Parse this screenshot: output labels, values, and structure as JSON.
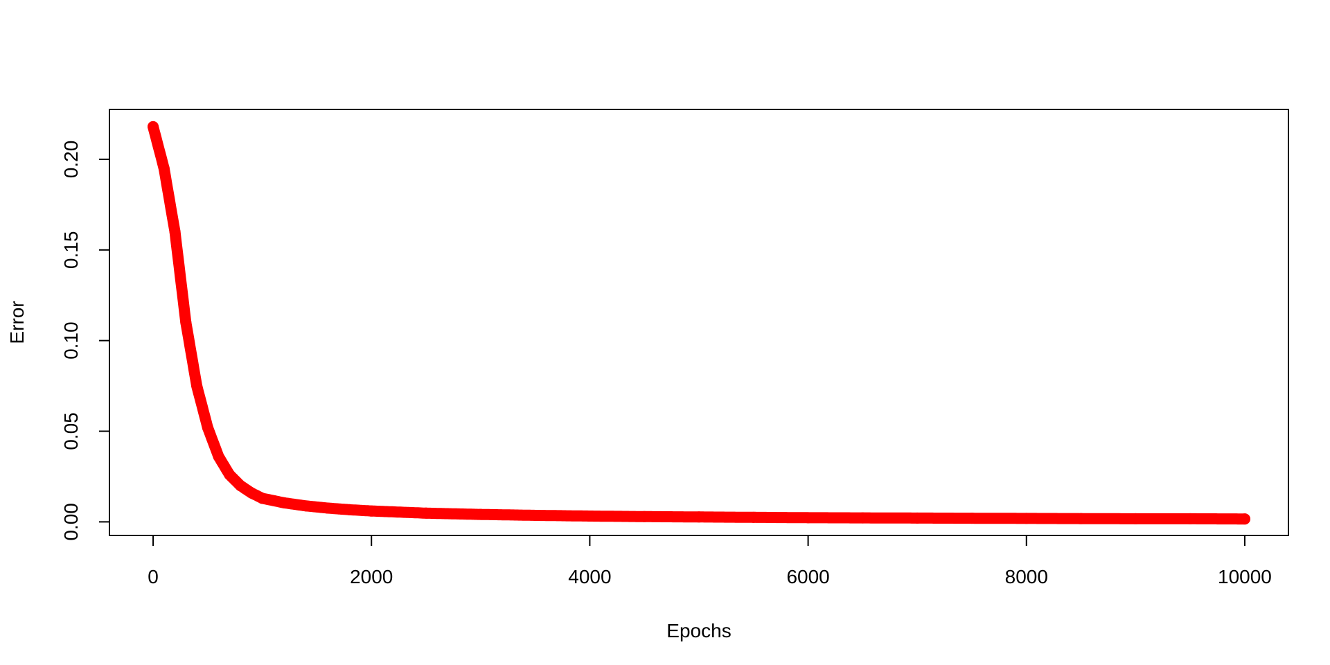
{
  "chart_data": {
    "type": "scatter",
    "title": "",
    "xlabel": "Epochs",
    "ylabel": "Error",
    "xlim": [
      -400,
      10400
    ],
    "ylim": [
      -0.0075,
      0.2275
    ],
    "x_ticks": [
      0,
      2000,
      4000,
      6000,
      8000,
      10000
    ],
    "x_tick_labels": [
      "0",
      "2000",
      "4000",
      "6000",
      "8000",
      "10000"
    ],
    "y_ticks": [
      0.0,
      0.05,
      0.1,
      0.15,
      0.2
    ],
    "y_tick_labels": [
      "0.00",
      "0.05",
      "0.10",
      "0.15",
      "0.20"
    ],
    "grid": false,
    "legend": "none",
    "series": [
      {
        "color": "#ff0000",
        "marker": "filled-circle",
        "x": [
          0,
          100,
          200,
          300,
          400,
          500,
          600,
          700,
          800,
          900,
          1000,
          1200,
          1400,
          1600,
          1800,
          2000,
          2500,
          3000,
          3500,
          4000,
          4500,
          5000,
          5500,
          6000,
          6500,
          7000,
          7500,
          8000,
          8500,
          9000,
          9500,
          10000
        ],
        "y": [
          0.218,
          0.195,
          0.16,
          0.11,
          0.075,
          0.052,
          0.036,
          0.026,
          0.02,
          0.016,
          0.013,
          0.0105,
          0.0088,
          0.0076,
          0.0067,
          0.006,
          0.0048,
          0.0041,
          0.0036,
          0.0032,
          0.0029,
          0.0027,
          0.0025,
          0.0023,
          0.0022,
          0.0021,
          0.002,
          0.0019,
          0.0018,
          0.0017,
          0.0017,
          0.0016
        ]
      }
    ]
  }
}
